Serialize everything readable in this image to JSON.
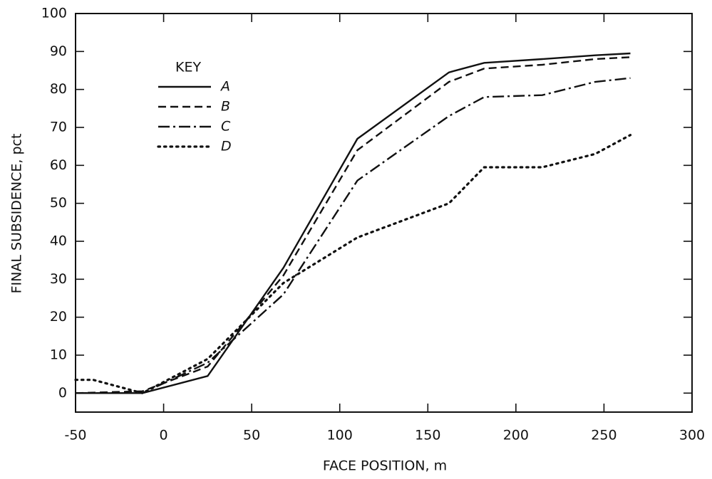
{
  "chart_data": {
    "type": "line",
    "x_label": "FACE POSITION, m",
    "y_label": "FINAL SUBSIDENCE, pct",
    "legend_title": "KEY",
    "legend": "upper left",
    "xlim": [
      -50,
      300
    ],
    "xticks": [
      -50,
      0,
      50,
      100,
      150,
      200,
      250,
      300
    ],
    "ylim": [
      -5,
      100
    ],
    "yticks": [
      0,
      10,
      20,
      30,
      40,
      50,
      60,
      70,
      80,
      90,
      100
    ],
    "series": [
      {
        "name": "A",
        "color": "#111111",
        "linestyle": "solid",
        "x": [
          -50,
          -12,
          25,
          68,
          110,
          162,
          182,
          215,
          245,
          265
        ],
        "values": [
          0,
          0,
          4.5,
          33,
          67,
          84.5,
          87,
          88,
          89,
          89.5
        ]
      },
      {
        "name": "B",
        "color": "#111111",
        "linestyle": "dashed",
        "x": [
          -50,
          -12,
          25,
          68,
          110,
          162,
          182,
          215,
          245,
          265
        ],
        "values": [
          0,
          0.5,
          7,
          31,
          64,
          82,
          85.5,
          86.5,
          88,
          88.5
        ]
      },
      {
        "name": "C",
        "color": "#111111",
        "linestyle": "dashdot",
        "x": [
          -50,
          -12,
          25,
          68,
          110,
          162,
          182,
          215,
          245,
          265
        ],
        "values": [
          0,
          0,
          8,
          26,
          56,
          73,
          78,
          78.5,
          82,
          83
        ]
      },
      {
        "name": "D",
        "color": "#111111",
        "linestyle": "dotted",
        "x": [
          -50,
          -40,
          -12,
          25,
          68,
          110,
          162,
          182,
          215,
          245,
          265
        ],
        "values": [
          3.5,
          3.5,
          0,
          9,
          29,
          41,
          50,
          59.5,
          59.5,
          63,
          68
        ]
      }
    ]
  }
}
